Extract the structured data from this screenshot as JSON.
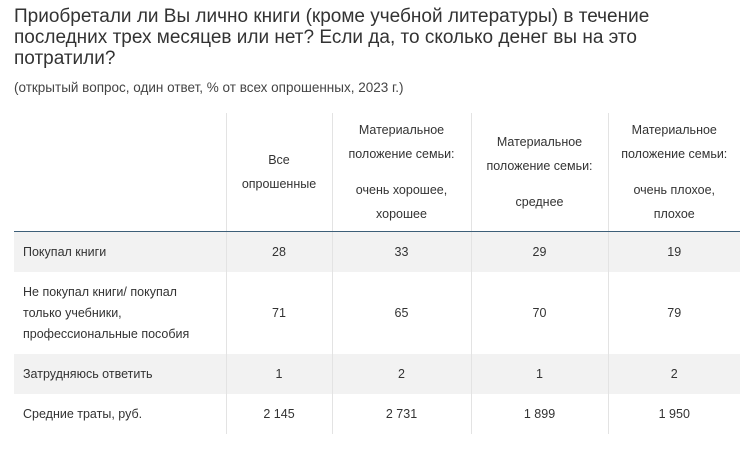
{
  "title": "Приобретали ли Вы лично книги (кроме учебной литературы) в течение последних трех месяцев или нет? Если да, то сколько денег вы на это потратили?",
  "subtitle": "(открытый вопрос, один ответ, % от всех опрошенных, 2023 г.)",
  "table": {
    "headers": [
      {
        "line1": "",
        "line2": ""
      },
      {
        "line1": "Все опрошенные",
        "line2": ""
      },
      {
        "line1": "Материальное положение семьи:",
        "line2": "очень хорошее, хорошее"
      },
      {
        "line1": "Материальное положение семьи:",
        "line2": "среднее"
      },
      {
        "line1": "Материальное положение семьи:",
        "line2": "очень плохое, плохое"
      }
    ],
    "rows": [
      {
        "label": "Покупал книги",
        "values": [
          "28",
          "33",
          "29",
          "19"
        ]
      },
      {
        "label": "Не покупал книги/ покупал только учебники, профессиональные пособия",
        "values": [
          "71",
          "65",
          "70",
          "79"
        ]
      },
      {
        "label": "Затрудняюсь ответить",
        "values": [
          "1",
          "2",
          "1",
          "2"
        ]
      },
      {
        "label": "Средние траты, руб.",
        "values": [
          "2 145",
          "2 731",
          "1 899",
          "1 950"
        ]
      }
    ]
  }
}
